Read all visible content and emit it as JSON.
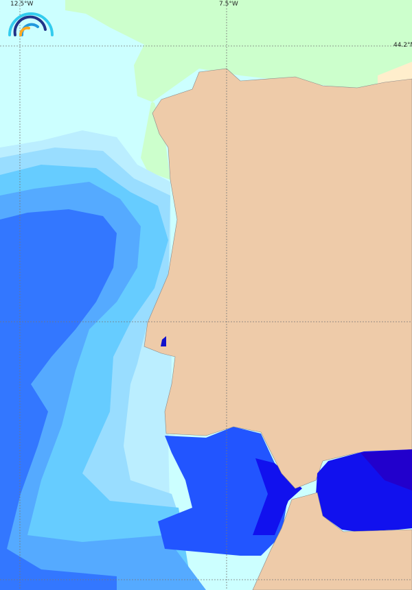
{
  "map": {
    "grid_labels": {
      "lon_left": "12.5°W",
      "lon_mid": "7.5°W",
      "lat_top": "44.2°N"
    },
    "colors": {
      "land": "#eecba9",
      "ocean_lowest": "#ccffff",
      "coastal_green": "#ccffcc",
      "light_blue": "#aaeeff",
      "sky_blue": "#66ccff",
      "mid_blue": "#55aaff",
      "deep_blue": "#3377ff",
      "strong_blue": "#2255ff",
      "strait_blue": "#1111ee",
      "mediterranean_dark": "#2200cc"
    },
    "logo_icon": "rainbow-arcs-logo"
  }
}
